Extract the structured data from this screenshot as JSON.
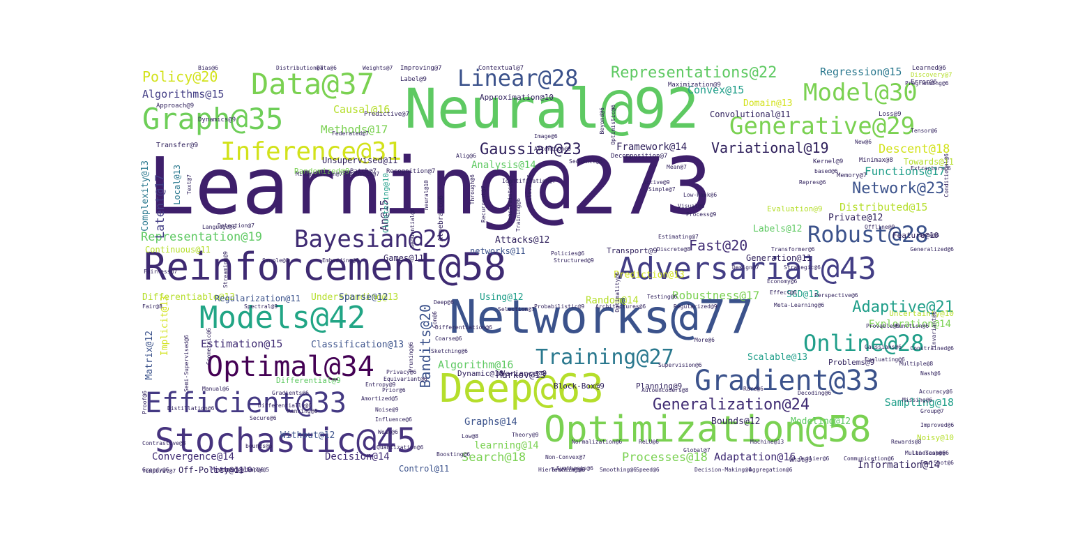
{
  "words": [
    {
      "text": "Learning@273",
      "color": "#3e1f6b"
    },
    {
      "text": "Neural@92",
      "color": "#5ec962"
    },
    {
      "text": "Networks@77",
      "color": "#3b528b"
    },
    {
      "text": "Deep@63",
      "color": "#b5de2b"
    },
    {
      "text": "Reinforcement@58",
      "color": "#3e2a72"
    },
    {
      "text": "Optimization@58",
      "color": "#7ad151"
    },
    {
      "text": "Stochastic@45",
      "color": "#46337e"
    },
    {
      "text": "Adversarial@43",
      "color": "#433e85"
    },
    {
      "text": "Models@42",
      "color": "#21a585"
    },
    {
      "text": "Data@37",
      "color": "#7ad151"
    },
    {
      "text": "Graph@35",
      "color": "#6ece58"
    },
    {
      "text": "Optimal@34",
      "color": "#440154"
    },
    {
      "text": "Efficient@33",
      "color": "#443983"
    },
    {
      "text": "Gradient@33",
      "color": "#3b528b"
    },
    {
      "text": "Inference@31",
      "color": "#d2e21b"
    },
    {
      "text": "Model@30",
      "color": "#7ad151"
    },
    {
      "text": "Generative@29",
      "color": "#7ad151"
    },
    {
      "text": "Bayesian@29",
      "color": "#3e2a72"
    },
    {
      "text": "Linear@28",
      "color": "#3b528b"
    },
    {
      "text": "Robust@28",
      "color": "#3b528b"
    },
    {
      "text": "Online@28",
      "color": "#1f9e89"
    },
    {
      "text": "Training@27",
      "color": "#2a788e"
    },
    {
      "text": "Generalization@24",
      "color": "#3e2a72"
    },
    {
      "text": "Gaussian@23",
      "color": "#2d1e5a"
    },
    {
      "text": "Network@23",
      "color": "#3b528b"
    },
    {
      "text": "Representations@22",
      "color": "#5ec962"
    },
    {
      "text": "Adaptive@21",
      "color": "#1f9e89"
    },
    {
      "text": "Policy@20",
      "color": "#d2e21b"
    },
    {
      "text": "Fast@20",
      "color": "#3e2a72"
    },
    {
      "text": "Bandits@20",
      "color": "#3b528b"
    },
    {
      "text": "Variational@19",
      "color": "#2d1e5a"
    },
    {
      "text": "Representation@19",
      "color": "#5ec962"
    },
    {
      "text": "Descent@18",
      "color": "#d2e21b"
    },
    {
      "text": "Search@18",
      "color": "#7ad151"
    },
    {
      "text": "Processes@18",
      "color": "#7ad151"
    },
    {
      "text": "Latent@17",
      "color": "#433e85"
    },
    {
      "text": "Methods@17",
      "color": "#7ad151"
    },
    {
      "text": "Functions@17",
      "color": "#1f9e89"
    },
    {
      "text": "Robustness@17",
      "color": "#7ad151"
    },
    {
      "text": "Causal@16",
      "color": "#b5de2b"
    },
    {
      "text": "Algorithm@16",
      "color": "#5ec962"
    },
    {
      "text": "Adaptation@16",
      "color": "#3e2a72"
    },
    {
      "text": "Algorithms@15",
      "color": "#433e85"
    },
    {
      "text": "Regression@15",
      "color": "#2a788e"
    },
    {
      "text": "Convex@15",
      "color": "#1f9e89"
    },
    {
      "text": "Distributed@15",
      "color": "#b5de2b"
    },
    {
      "text": "Estimation@15",
      "color": "#3e2a72"
    },
    {
      "text": "An@15",
      "color": "#2d1e5a"
    },
    {
      "text": "Analysis@14",
      "color": "#5ec962"
    },
    {
      "text": "Framework@14",
      "color": "#2d1e5a"
    },
    {
      "text": "Exploration@14",
      "color": "#7ad151"
    },
    {
      "text": "Random@14",
      "color": "#b5de2b"
    },
    {
      "text": "Graphs@14",
      "color": "#3b528b"
    },
    {
      "text": "Decision@14",
      "color": "#3e2a72"
    },
    {
      "text": "Convergence@14",
      "color": "#3e2a72"
    },
    {
      "text": "Information@14",
      "color": "#2d1e5a"
    },
    {
      "text": "learning@14",
      "color": "#7ad151"
    },
    {
      "text": "Complexity@13",
      "color": "#2a788e"
    },
    {
      "text": "Domain@13",
      "color": "#d2e21b"
    },
    {
      "text": "Prediction@13",
      "color": "#d2e21b"
    },
    {
      "text": "SGD@13",
      "color": "#1f9e89"
    },
    {
      "text": "Differentiable@13",
      "color": "#b5de2b"
    },
    {
      "text": "Understanding@13",
      "color": "#b5de2b"
    },
    {
      "text": "Classification@13",
      "color": "#3b528b"
    },
    {
      "text": "Scalable@13",
      "color": "#1f9e89"
    },
    {
      "text": "Markov@13",
      "color": "#2d1e5a"
    },
    {
      "text": "Implicit@13",
      "color": "#d2e21b"
    },
    {
      "text": "Labels@12",
      "color": "#5ec962"
    },
    {
      "text": "Private@12",
      "color": "#2d1e5a"
    },
    {
      "text": "Attacks@12",
      "color": "#2d1e5a"
    },
    {
      "text": "Sparse@12",
      "color": "#3b528b"
    },
    {
      "text": "Using@12",
      "color": "#1f9e89"
    },
    {
      "text": "Without@12",
      "color": "#3b528b"
    },
    {
      "text": "Bounds@12",
      "color": "#2d1e5a"
    },
    {
      "text": "Modeling@12",
      "color": "#5ec962"
    },
    {
      "text": "Matrix@12",
      "color": "#3b528b"
    },
    {
      "text": "Unsupervised@11",
      "color": "#2d1e5a"
    },
    {
      "text": "Convolutional@11",
      "color": "#2d1e5a"
    },
    {
      "text": "Continuous@11",
      "color": "#b5de2b"
    },
    {
      "text": "networks@11",
      "color": "#3b528b"
    },
    {
      "text": "Generation@11",
      "color": "#2d1e5a"
    },
    {
      "text": "Regularization@11",
      "color": "#3b528b"
    },
    {
      "text": "Games@11",
      "color": "#2d1e5a"
    },
    {
      "text": "Off-Policy@11",
      "color": "#2d1e5a"
    },
    {
      "text": "Control@11",
      "color": "#3b528b"
    },
    {
      "text": "Towards@11",
      "color": "#b5de2b"
    },
    {
      "text": "Uncertainty@10",
      "color": "#b5de2b"
    },
    {
      "text": "Feature@10",
      "color": "#2d1e5a"
    },
    {
      "text": "Noisy@10",
      "color": "#b5de2b"
    },
    {
      "text": "Method@10",
      "color": "#3e2a72"
    },
    {
      "text": "Dynamic@10",
      "color": "#2d1e5a"
    },
    {
      "text": "Variance@9",
      "color": "#2d1e5a"
    },
    {
      "text": "Approximation@10",
      "color": "#2d1e5a"
    },
    {
      "text": "Clustering@10",
      "color": "#1f9e89"
    },
    {
      "text": "Local@13",
      "color": "#2a788e"
    },
    {
      "text": "Evaluation@9",
      "color": "#b5de2b"
    },
    {
      "text": "Transport@9",
      "color": "#2d1e5a"
    },
    {
      "text": "Sampling@18",
      "color": "#1f9e89"
    },
    {
      "text": "Problems@9",
      "color": "#2d1e5a"
    },
    {
      "text": "Randomized@9",
      "color": "#7ad151"
    },
    {
      "text": "Differential@9",
      "color": "#5ec962"
    },
    {
      "text": "Block-Box@9",
      "color": "#2d1e5a"
    },
    {
      "text": "Planning@9",
      "color": "#2d1e5a"
    },
    {
      "text": "Transfer@9",
      "color": "#2d1e5a"
    },
    {
      "text": "Approach@9",
      "color": "#2d1e5a"
    },
    {
      "text": "Batch@7",
      "color": "#2d1e5a"
    },
    {
      "text": "Recognition@7",
      "color": "#2d1e5a"
    },
    {
      "text": "Dynamics@9",
      "color": "#2d1e5a"
    },
    {
      "text": "Label@9",
      "color": "#2d1e5a"
    },
    {
      "text": "Improving@7",
      "color": "#2d1e5a"
    },
    {
      "text": "Contextual@7",
      "color": "#2d1e5a"
    },
    {
      "text": "Maximization@9",
      "color": "#2d1e5a"
    },
    {
      "text": "Learned@6",
      "color": "#2d1e5a"
    },
    {
      "text": "Error@6",
      "color": "#2d1e5a"
    },
    {
      "text": "Loss@9",
      "color": "#2d1e5a"
    },
    {
      "text": "Kernel@9",
      "color": "#2d1e5a"
    },
    {
      "text": "Minimax@8",
      "color": "#2d1e5a"
    },
    {
      "text": "Memory@7",
      "color": "#2d1e5a"
    },
    {
      "text": "Predictive@7",
      "color": "#2d1e5a"
    },
    {
      "text": "Federated@7",
      "color": "#2d1e5a"
    },
    {
      "text": "Image@6",
      "color": "#2d1e5a"
    },
    {
      "text": "Attention@9",
      "color": "#2d1e5a"
    },
    {
      "text": "Sequence@6",
      "color": "#2d1e5a"
    },
    {
      "text": "Decomposition@7",
      "color": "#2d1e5a"
    },
    {
      "text": "Mean@7",
      "color": "#2d1e5a"
    },
    {
      "text": "Active@9",
      "color": "#2d1e5a"
    },
    {
      "text": "Process@9",
      "color": "#2d1e5a"
    },
    {
      "text": "Visual@6",
      "color": "#2d1e5a"
    },
    {
      "text": "Low-Rank@6",
      "color": "#2d1e5a"
    },
    {
      "text": "Estimating@7",
      "color": "#2d1e5a"
    },
    {
      "text": "Discrete@8",
      "color": "#2d1e5a"
    },
    {
      "text": "Transformer@6",
      "color": "#2d1e5a"
    },
    {
      "text": "Design@7",
      "color": "#2d1e5a"
    },
    {
      "text": "Strategic@6",
      "color": "#2d1e5a"
    },
    {
      "text": "Policies@6",
      "color": "#2d1e5a"
    },
    {
      "text": "Structured@9",
      "color": "#2d1e5a"
    },
    {
      "text": "Embedding@6",
      "color": "#2d1e5a"
    },
    {
      "text": "Fairness@7",
      "color": "#2d1e5a"
    },
    {
      "text": "Sample@8",
      "color": "#2d1e5a"
    },
    {
      "text": "Streaming@9",
      "color": "#2d1e5a"
    },
    {
      "text": "Probabilistic@9",
      "color": "#2d1e5a"
    },
    {
      "text": "Architectures@6",
      "color": "#2d1e5a"
    },
    {
      "text": "Selection@7",
      "color": "#2d1e5a"
    },
    {
      "text": "Regularized@9",
      "color": "#2d1e5a"
    },
    {
      "text": "Perspective@6",
      "color": "#2d1e5a"
    },
    {
      "text": "Provable@9",
      "color": "#2d1e5a"
    },
    {
      "text": "Function@6",
      "color": "#2d1e5a"
    },
    {
      "text": "Evaluating@6",
      "color": "#2d1e5a"
    },
    {
      "text": "Multiple@8",
      "color": "#2d1e5a"
    },
    {
      "text": "Group@7",
      "color": "#2d1e5a"
    },
    {
      "text": "Improved@6",
      "color": "#2d1e5a"
    },
    {
      "text": "Rewards@8",
      "color": "#2d1e5a"
    },
    {
      "text": "Low@8",
      "color": "#2d1e5a"
    },
    {
      "text": "Theory@9",
      "color": "#2d1e5a"
    },
    {
      "text": "Non-Convex@7",
      "color": "#2d1e5a"
    },
    {
      "text": "ReLU@6",
      "color": "#2d1e5a"
    },
    {
      "text": "Machine@13",
      "color": "#2d1e5a"
    },
    {
      "text": "What@9",
      "color": "#2d1e5a"
    },
    {
      "text": "Autoencoders@8",
      "color": "#2d1e5a"
    },
    {
      "text": "Supervision@6",
      "color": "#2d1e5a"
    },
    {
      "text": "Entropy@9",
      "color": "#2d1e5a"
    },
    {
      "text": "Amortized@5",
      "color": "#2d1e5a"
    },
    {
      "text": "Manual@6",
      "color": "#2d1e5a"
    },
    {
      "text": "Noise@9",
      "color": "#2d1e5a"
    },
    {
      "text": "Influence@6",
      "color": "#2d1e5a"
    },
    {
      "text": "bounds@6",
      "color": "#2d1e5a"
    },
    {
      "text": "Quantization@6",
      "color": "#2d1e5a"
    },
    {
      "text": "Contrastive@8",
      "color": "#2d1e5a"
    },
    {
      "text": "Geometric@6",
      "color": "#2d1e5a"
    },
    {
      "text": "Semi-Supervised@6",
      "color": "#2d1e5a"
    },
    {
      "text": "Text@7",
      "color": "#2d1e5a"
    },
    {
      "text": "Detection@7",
      "color": "#2d1e5a"
    },
    {
      "text": "Language@6",
      "color": "#2d1e5a"
    },
    {
      "text": "Feedback@7",
      "color": "#2d1e5a"
    },
    {
      "text": "Sequential@6",
      "color": "#2d1e5a"
    },
    {
      "text": "Con@6",
      "color": "#2d1e5a"
    },
    {
      "text": "Deep@6",
      "color": "#2d1e5a"
    },
    {
      "text": "Fair@8",
      "color": "#2d1e5a"
    },
    {
      "text": "Spectral@9",
      "color": "#2d1e5a"
    },
    {
      "text": "Minimization@7",
      "color": "#2d1e5a"
    },
    {
      "text": "Identification@7",
      "color": "#2d1e5a"
    },
    {
      "text": "Conditional@6",
      "color": "#2d1e5a"
    },
    {
      "text": "Extractors@6",
      "color": "#2d1e5a"
    },
    {
      "text": "based@6",
      "color": "#2d1e5a"
    },
    {
      "text": "Repres@6",
      "color": "#2d1e5a"
    },
    {
      "text": "Generalized@6",
      "color": "#2d1e5a"
    },
    {
      "text": "Offline@9",
      "color": "#2d1e5a"
    },
    {
      "text": "Meta-Learning@6",
      "color": "#2d1e5a"
    },
    {
      "text": "Global@7",
      "color": "#2d1e5a"
    },
    {
      "text": "Boosting@6",
      "color": "#2d1e5a"
    },
    {
      "text": "Normalization@6",
      "color": "#2d1e5a"
    },
    {
      "text": "Teaching@6",
      "color": "#2d1e5a"
    },
    {
      "text": "Smoothing@6",
      "color": "#2d1e5a"
    },
    {
      "text": "Speed@6",
      "color": "#2d1e5a"
    },
    {
      "text": "Aggregation@6",
      "color": "#2d1e5a"
    },
    {
      "text": "Tensor@6",
      "color": "#2d1e5a"
    },
    {
      "text": "Discovery@7",
      "color": "#2d1e5a"
    },
    {
      "text": "Beyond@6",
      "color": "#2d1e5a"
    },
    {
      "text": "Optimistic@6",
      "color": "#2d1e5a"
    },
    {
      "text": "Optimality@6",
      "color": "#2d1e5a"
    },
    {
      "text": "Rare@6",
      "color": "#2d1e5a"
    },
    {
      "text": "More@6",
      "color": "#2d1e5a"
    },
    {
      "text": "Simple@7",
      "color": "#2d1e5a"
    },
    {
      "text": "Effect@6",
      "color": "#2d1e5a"
    },
    {
      "text": "Invariant@6",
      "color": "#2d1e5a"
    },
    {
      "text": "Temporal@7",
      "color": "#2d1e5a"
    },
    {
      "text": "Secure@6",
      "color": "#2d1e5a"
    },
    {
      "text": "Multi-Task@6",
      "color": "#2d1e5a"
    },
    {
      "text": "Gaussians@6",
      "color": "#2d1e5a"
    },
    {
      "text": "Constrained@6",
      "color": "#2d1e5a"
    },
    {
      "text": "Nash@6",
      "color": "#2d1e5a"
    },
    {
      "text": "Distribution@7",
      "color": "#2d1e5a"
    },
    {
      "text": "Data@6",
      "color": "#2d1e5a"
    },
    {
      "text": "Bias@6",
      "color": "#2d1e5a"
    },
    {
      "text": "Weights@7",
      "color": "#2d1e5a"
    },
    {
      "text": "Alig@6",
      "color": "#2d1e5a"
    },
    {
      "text": "Through@6",
      "color": "#2d1e5a"
    },
    {
      "text": "Recurrent@7",
      "color": "#2d1e5a"
    },
    {
      "text": "Constraints@6",
      "color": "#2d1e5a"
    },
    {
      "text": "Training@6",
      "color": "#2d1e5a"
    },
    {
      "text": "Algebraic@6",
      "color": "#2d1e5a"
    },
    {
      "text": "neural@10",
      "color": "#2d1e5a"
    },
    {
      "text": "Bilevel@6",
      "color": "#2d1e5a"
    },
    {
      "text": "Pruning@6",
      "color": "#2d1e5a"
    },
    {
      "text": "Differentiation@6",
      "color": "#2d1e5a"
    },
    {
      "text": "Coarse@6",
      "color": "#2d1e5a"
    },
    {
      "text": "Sketching@6",
      "color": "#2d1e5a"
    },
    {
      "text": "Weak@6",
      "color": "#2d1e5a"
    },
    {
      "text": "New@6",
      "color": "#2d1e5a"
    },
    {
      "text": "Decoding@6",
      "color": "#2d1e5a"
    },
    {
      "text": "Programming@6",
      "color": "#2d1e5a"
    },
    {
      "text": "Greedy@6",
      "color": "#2d1e5a"
    },
    {
      "text": "Adversarially@5",
      "color": "#2d1e5a"
    },
    {
      "text": "Gap@6",
      "color": "#2d1e5a"
    },
    {
      "text": "Decision-Making@6",
      "color": "#2d1e5a"
    },
    {
      "text": "Proof@6",
      "color": "#2d1e5a"
    },
    {
      "text": "Distillation@6",
      "color": "#2d1e5a"
    },
    {
      "text": "Differentially@6",
      "color": "#2d1e5a"
    },
    {
      "text": "Outlier@6",
      "color": "#2d1e5a"
    },
    {
      "text": "Communication@6",
      "color": "#2d1e5a"
    },
    {
      "text": "Few-Shot@6",
      "color": "#2d1e5a"
    },
    {
      "text": "Gradients@6",
      "color": "#2d1e5a"
    },
    {
      "text": "Ranking@6",
      "color": "#2d1e5a"
    },
    {
      "text": "Prior@6",
      "color": "#2d1e5a"
    },
    {
      "text": "Equivariant@6",
      "color": "#2d1e5a"
    },
    {
      "text": "Privacy@6",
      "color": "#2d1e5a"
    },
    {
      "text": "Synthesis@6",
      "color": "#2d1e5a"
    },
    {
      "text": "Hierarchical@6",
      "color": "#2d1e5a"
    },
    {
      "text": "Testing@6",
      "color": "#2d1e5a"
    },
    {
      "text": "Landscape@6",
      "color": "#2d1e5a"
    },
    {
      "text": "Accuracy@6",
      "color": "#2d1e5a"
    },
    {
      "text": "Missing@6",
      "color": "#2d1e5a"
    },
    {
      "text": "Sets@6",
      "color": "#2d1e5a"
    },
    {
      "text": "Economy@6",
      "color": "#2d1e5a"
    },
    {
      "text": "Quantitative@6",
      "color": "#2d1e5a"
    },
    {
      "text": "Infinite@6",
      "color": "#2d1e5a"
    },
    {
      "text": "Model-Free@6",
      "color": "#2d1e5a"
    },
    {
      "text": "Imitation@6",
      "color": "#2d1e5a"
    }
  ]
}
